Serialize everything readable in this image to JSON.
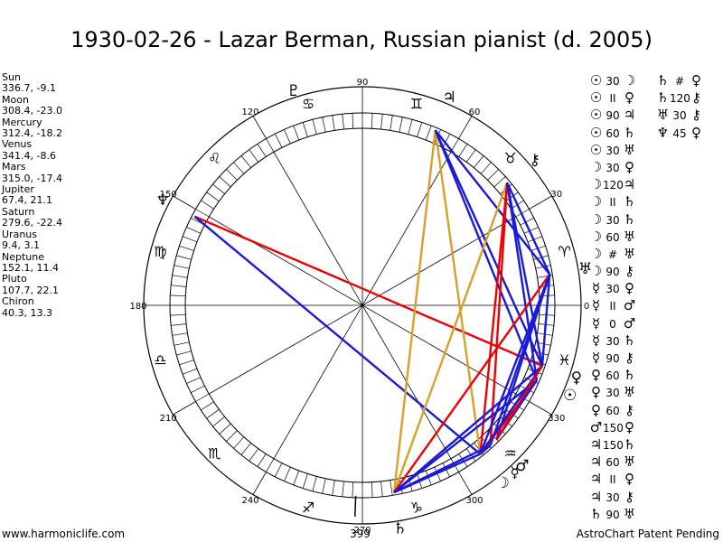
{
  "title": "1930-02-26 - Lazar Berman, Russian pianist (d. 2005)",
  "footer": {
    "left": "www.harmoniclife.com",
    "center": "399",
    "right": "AstroChart Patent Pending"
  },
  "positions": [
    {
      "name": "Sun",
      "value": "336.7, -9.1"
    },
    {
      "name": "Moon",
      "value": "308.4, -23.0"
    },
    {
      "name": "Mercury",
      "value": "312.4, -18.2"
    },
    {
      "name": "Venus",
      "value": "341.4, -8.6"
    },
    {
      "name": "Mars",
      "value": "315.0, -17.4"
    },
    {
      "name": "Jupiter",
      "value": "67.4, 21.1"
    },
    {
      "name": "Saturn",
      "value": "279.6, -22.4"
    },
    {
      "name": "Uranus",
      "value": "9.4, 3.1"
    },
    {
      "name": "Neptune",
      "value": "152.1, 11.4"
    },
    {
      "name": "Pluto",
      "value": "107.7, 22.1"
    },
    {
      "name": "Chiron",
      "value": "40.3, 13.3"
    }
  ],
  "degree_labels": [
    "0",
    "30",
    "60",
    "90",
    "120",
    "150",
    "180",
    "210",
    "240",
    "270",
    "300",
    "330"
  ],
  "zodiac_glyphs": [
    "♈",
    "♉",
    "♊",
    "♋",
    "♌",
    "♍",
    "♎",
    "♏",
    "♐",
    "♑",
    "♒",
    "♓"
  ],
  "planets": [
    {
      "glyph": "☉",
      "angle": 336.7
    },
    {
      "glyph": "☽",
      "angle": 308.4
    },
    {
      "glyph": "☿",
      "angle": 312.4
    },
    {
      "glyph": "♀",
      "angle": 341.4
    },
    {
      "glyph": "♂",
      "angle": 315.0
    },
    {
      "glyph": "♃",
      "angle": 67.4
    },
    {
      "glyph": "♄",
      "angle": 279.6
    },
    {
      "glyph": "♅",
      "angle": 9.4
    },
    {
      "glyph": "♆",
      "angle": 152.1
    },
    {
      "glyph": "♇",
      "angle": 107.7
    },
    {
      "glyph": "⚷",
      "angle": 40.3
    }
  ],
  "aspects_col1": [
    {
      "p1": "☉",
      "orb": "30",
      "p2": "☽"
    },
    {
      "p1": "☉",
      "orb": "II",
      "p2": "♀"
    },
    {
      "p1": "☉",
      "orb": "90",
      "p2": "♃"
    },
    {
      "p1": "☉",
      "orb": "60",
      "p2": "♄"
    },
    {
      "p1": "☉",
      "orb": "30",
      "p2": "♅"
    },
    {
      "p1": "☽",
      "orb": "30",
      "p2": "♀"
    },
    {
      "p1": "☽",
      "orb": "120",
      "p2": "♃"
    },
    {
      "p1": "☽",
      "orb": "II",
      "p2": "♄"
    },
    {
      "p1": "☽",
      "orb": "30",
      "p2": "♄"
    },
    {
      "p1": "☽",
      "orb": "60",
      "p2": "♅"
    },
    {
      "p1": "☽",
      "orb": "#",
      "p2": "♅"
    },
    {
      "p1": "☽",
      "orb": "90",
      "p2": "⚷"
    },
    {
      "p1": "☿",
      "orb": "30",
      "p2": "♀"
    },
    {
      "p1": "☿",
      "orb": "II",
      "p2": "♂"
    },
    {
      "p1": "☿",
      "orb": "0",
      "p2": "♂"
    },
    {
      "p1": "☿",
      "orb": "30",
      "p2": "♄"
    },
    {
      "p1": "☿",
      "orb": "90",
      "p2": "⚷"
    },
    {
      "p1": "♀",
      "orb": "60",
      "p2": "♄"
    },
    {
      "p1": "♀",
      "orb": "30",
      "p2": "♅"
    },
    {
      "p1": "♀",
      "orb": "60",
      "p2": "⚷"
    },
    {
      "p1": "♂",
      "orb": "150",
      "p2": "♀"
    },
    {
      "p1": "♃",
      "orb": "150",
      "p2": "♄"
    },
    {
      "p1": "♃",
      "orb": "60",
      "p2": "♅"
    },
    {
      "p1": "♃",
      "orb": "II",
      "p2": "♀"
    },
    {
      "p1": "♃",
      "orb": "30",
      "p2": "⚷"
    },
    {
      "p1": "♄",
      "orb": "90",
      "p2": "♅"
    }
  ],
  "aspects_col2": [
    {
      "p1": "♄",
      "orb": "#",
      "p2": "♀"
    },
    {
      "p1": "♄",
      "orb": "120",
      "p2": "⚷"
    },
    {
      "p1": "♅",
      "orb": "30",
      "p2": "⚷"
    },
    {
      "p1": "♆",
      "orb": "45",
      "p2": "♀"
    }
  ],
  "colors": {
    "red": "#ee0000",
    "blue": "#1a1ad8",
    "gold": "#d8a028",
    "black": "#000000"
  }
}
